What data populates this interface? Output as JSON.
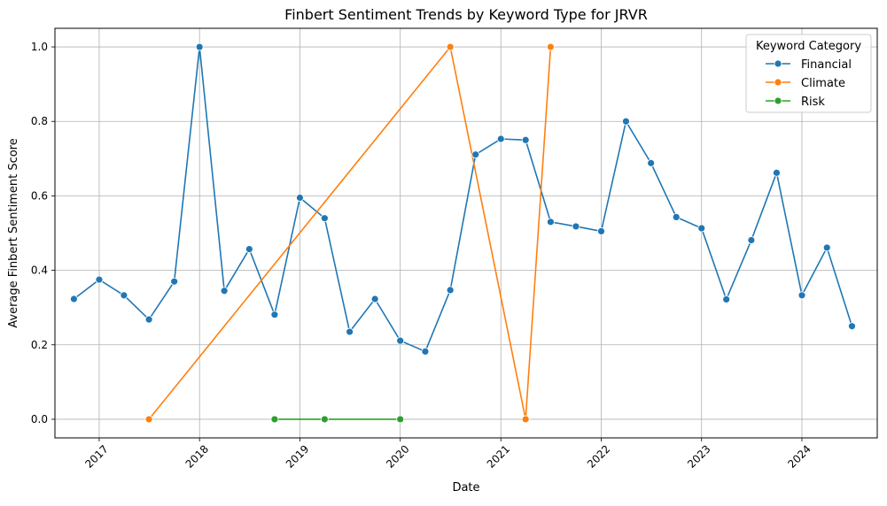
{
  "chart_data": {
    "type": "line",
    "title": "Finbert Sentiment Trends by Keyword Type for JRVR",
    "xlabel": "Date",
    "ylabel": "Average Finbert Sentiment Score",
    "xlim": [
      "2016-07-24",
      "2024-10-01"
    ],
    "ylim": [
      -0.05,
      1.05
    ],
    "grid": true,
    "legend": {
      "title": "Keyword Category",
      "position": "top-right"
    },
    "x_ticks": [
      "2017-01-01",
      "2018-01-01",
      "2019-01-01",
      "2020-01-01",
      "2021-01-01",
      "2022-01-01",
      "2023-01-01",
      "2024-01-01"
    ],
    "x_tick_labels": [
      "2017",
      "2018",
      "2019",
      "2020",
      "2021",
      "2022",
      "2023",
      "2024"
    ],
    "y_ticks": [
      0.0,
      0.2,
      0.4,
      0.6,
      0.8,
      1.0
    ],
    "y_tick_labels": [
      "0.0",
      "0.2",
      "0.4",
      "0.6",
      "0.8",
      "1.0"
    ],
    "series": [
      {
        "name": "Financial",
        "color": "#1f77b4",
        "x": [
          "2016-10-01",
          "2017-01-01",
          "2017-04-01",
          "2017-07-01",
          "2017-10-01",
          "2018-01-01",
          "2018-04-01",
          "2018-07-01",
          "2018-10-01",
          "2019-01-01",
          "2019-04-01",
          "2019-07-01",
          "2019-10-01",
          "2020-01-01",
          "2020-04-01",
          "2020-07-01",
          "2020-10-01",
          "2021-01-01",
          "2021-04-01",
          "2021-07-01",
          "2021-10-01",
          "2022-01-01",
          "2022-04-01",
          "2022-07-01",
          "2022-10-01",
          "2023-01-01",
          "2023-04-01",
          "2023-07-01",
          "2023-10-01",
          "2024-01-01",
          "2024-04-01",
          "2024-07-01"
        ],
        "values": [
          0.323,
          0.375,
          0.333,
          0.268,
          0.37,
          1.0,
          0.345,
          0.457,
          0.281,
          0.595,
          0.54,
          0.235,
          0.323,
          0.211,
          0.182,
          0.347,
          0.711,
          0.753,
          0.75,
          0.53,
          0.518,
          0.505,
          0.8,
          0.688,
          0.543,
          0.513,
          0.322,
          0.481,
          0.662,
          0.333,
          0.461,
          0.25
        ]
      },
      {
        "name": "Climate",
        "color": "#ff7f0e",
        "x": [
          "2017-07-01",
          "2020-07-01",
          "2021-04-01",
          "2021-07-01"
        ],
        "values": [
          0.0,
          1.0,
          0.0,
          1.0
        ]
      },
      {
        "name": "Risk",
        "color": "#2ca02c",
        "x": [
          "2018-10-01",
          "2019-04-01",
          "2020-01-01"
        ],
        "values": [
          0.0,
          0.0,
          0.0
        ]
      }
    ]
  }
}
